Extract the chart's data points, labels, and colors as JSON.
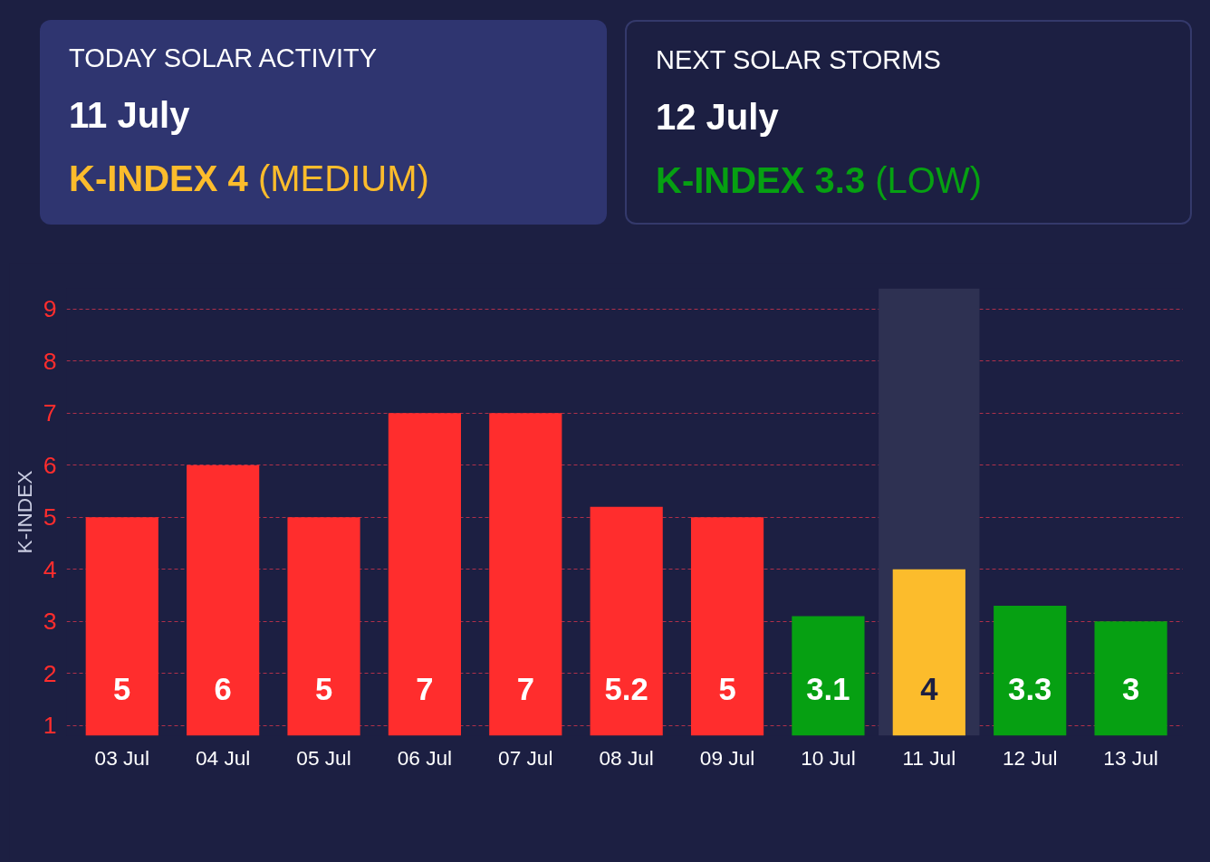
{
  "chart_data": [
    {
      "type": "other",
      "title": "TODAY SOLAR ACTIVITY",
      "annotations": [
        "11 July",
        "K-INDEX 4",
        "(MEDIUM)"
      ]
    },
    {
      "type": "other",
      "title": "NEXT SOLAR STORMS",
      "annotations": [
        "12 July",
        "K-INDEX 3.3",
        "(LOW)"
      ]
    },
    {
      "type": "bar",
      "ylabel": "K-INDEX",
      "categories": [
        "03 Jul",
        "04 Jul",
        "05 Jul",
        "06 Jul",
        "07 Jul",
        "08 Jul",
        "09 Jul",
        "10 Jul",
        "11 Jul",
        "12 Jul",
        "13 Jul"
      ],
      "values": [
        5,
        6,
        5,
        7,
        7,
        5.2,
        5,
        3.1,
        4,
        3.3,
        3
      ],
      "colors": [
        "#ff2d2d",
        "#ff2d2d",
        "#ff2d2d",
        "#ff2d2d",
        "#ff2d2d",
        "#ff2d2d",
        "#ff2d2d",
        "#06a012",
        "#fcbc2c",
        "#06a012",
        "#06a012"
      ],
      "data_labels": true,
      "ylim": [
        0.8,
        9.4
      ],
      "yticks": [
        1,
        2,
        3,
        4,
        5,
        6,
        7,
        8,
        9
      ],
      "grid": "y",
      "bands": [
        {
          "axis": "x",
          "from": "11 Jul",
          "to": "11 Jul",
          "color": "#2e3152"
        }
      ]
    }
  ]
}
